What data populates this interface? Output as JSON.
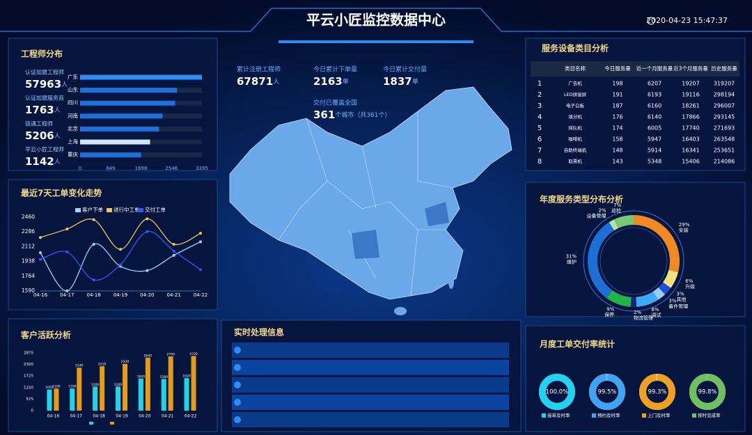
{
  "header": {
    "title": "平云小匠监控数据中心",
    "datetime": "2020-04-23 15:47:37"
  },
  "engineers": {
    "title": "工程师分布",
    "stats": [
      {
        "label": "认证加盟工程师",
        "value": "57963",
        "unit": "人"
      },
      {
        "label": "认证加盟服务商",
        "value": "1763",
        "unit": "人"
      },
      {
        "label": "锁通工程师",
        "value": "5206",
        "unit": "人"
      },
      {
        "label": "平云小匠工程师",
        "value": "1142",
        "unit": "人"
      }
    ]
  },
  "map": {
    "stats": [
      {
        "label": "累计注册工程师",
        "value": "67871",
        "unit": "人"
      },
      {
        "label": "今日累计下单量",
        "value": "2163",
        "unit": "单"
      },
      {
        "label": "今日累计交付量",
        "value": "1837",
        "unit": "单"
      },
      {
        "label": "交付已覆盖全国",
        "value": "361",
        "unit": "个城市（共361个）"
      }
    ]
  },
  "realtime": {
    "title": "实时处理信息"
  },
  "table": {
    "title": "服务设备类目分析",
    "columns": [
      "类目名称",
      "今日服务量",
      "近一个月服务量",
      "近3个月服务量",
      "历史服务量"
    ],
    "rows": [
      [
        "1",
        "广告机",
        "198",
        "6207",
        "19207",
        "319207"
      ],
      [
        "2",
        "LED拼接屏",
        "191",
        "6193",
        "19116",
        "298194"
      ],
      [
        "3",
        "电子白板",
        "187",
        "6160",
        "18261",
        "296007"
      ],
      [
        "4",
        "填分机",
        "176",
        "6140",
        "17866",
        "293145"
      ],
      [
        "5",
        "排队机",
        "174",
        "6005",
        "17740",
        "271693"
      ],
      [
        "6",
        "咖啡机",
        "158",
        "5947",
        "16403",
        "263548"
      ],
      [
        "7",
        "自助终端机",
        "148",
        "5914",
        "16341",
        "253651"
      ],
      [
        "8",
        "取票机",
        "143",
        "5348",
        "15406",
        "214086"
      ]
    ]
  },
  "chart_data": [
    {
      "type": "hbar",
      "categories": [
        "广东",
        "山东",
        "四川",
        "河南",
        "北京",
        "上海",
        "重庆"
      ],
      "values": [
        3395,
        2700,
        2650,
        2300,
        2200,
        1950,
        1700
      ],
      "colors": [
        "#2f8cf0",
        "#1f6fd8",
        "#1f6fd8",
        "#1f6fd8",
        "#1f6fd8",
        "#cfe6ff",
        "#1f6fd8"
      ],
      "xlim": [
        0,
        3395
      ],
      "xticks": [
        0,
        849,
        1698,
        2546,
        3395
      ]
    },
    {
      "type": "line",
      "title": "最近7天工单变化走势",
      "categories": [
        "04-16",
        "04-17",
        "04-18",
        "04-19",
        "04-20",
        "04-21",
        "04-22"
      ],
      "series": [
        {
          "name": "客户下单",
          "color": "#8fdcf5",
          "values": [
            2040,
            1590,
            2140,
            1880,
            1830,
            2010,
            2170
          ]
        },
        {
          "name": "进行中工单",
          "color": "#f5c55c",
          "values": [
            2220,
            2320,
            2430,
            2080,
            2440,
            2140,
            2270
          ]
        },
        {
          "name": "交付工单",
          "color": "#3355ff",
          "values": [
            1960,
            2050,
            1720,
            1900,
            2290,
            2060,
            1840
          ]
        }
      ],
      "ylim": [
        1590,
        2460
      ],
      "yticks": [
        1590,
        1764,
        1938,
        2112,
        2286,
        2460
      ],
      "grid": false
    },
    {
      "type": "bar",
      "title": "客户活跃分析",
      "categories": [
        "04-16",
        "04-17",
        "04-18",
        "04-19",
        "04-20",
        "04-21",
        "04-22"
      ],
      "series": [
        {
          "color": "#1fd3e8",
          "values": [
            1050,
            1100,
            1200,
            1200,
            1600,
            1580,
            1620
          ]
        },
        {
          "color": "#e59a18",
          "values": [
            1100,
            2140,
            2210,
            2330,
            2640,
            2700,
            2720
          ]
        }
      ],
      "ylim": [
        0,
        2875
      ],
      "yticks": [
        0,
        575,
        1150,
        1725,
        2300,
        2875
      ],
      "grid": false
    },
    {
      "type": "donut",
      "title": "年度服务类型分布分析",
      "categories": [
        "安装",
        "升级",
        "其他",
        "备件管理",
        "调试",
        "物流管理",
        "保养",
        "维护",
        "设备管理",
        "巡检"
      ],
      "values": [
        29,
        6,
        3,
        3,
        8,
        2,
        9,
        31,
        2,
        7
      ],
      "value_labels": [
        "29%",
        "6%",
        "3%",
        "3%",
        "8%",
        "2%",
        "9%",
        "31%",
        "2%",
        "7%"
      ],
      "colors": [
        "#f08a24",
        "#f5e27a",
        "#1f4fd8",
        "#8fd3f4",
        "#3fa9f5",
        "#1a237e",
        "#20b34a",
        "#1d6fd6",
        "#b6e3a8",
        "#78c878"
      ]
    },
    {
      "type": "gauges",
      "title": "月度工单交付率统计",
      "categories": [
        "接单及时率",
        "预约及时率",
        "上门及时率",
        "按时完成率"
      ],
      "values": [
        100.0,
        99.5,
        99.3,
        99.8
      ],
      "value_labels": [
        "100.0%",
        "99.5%",
        "99.3%",
        "99.8%"
      ],
      "colors": [
        "#1fd3f5",
        "#3fa4f5",
        "#f0a020",
        "#6fc060"
      ]
    }
  ]
}
